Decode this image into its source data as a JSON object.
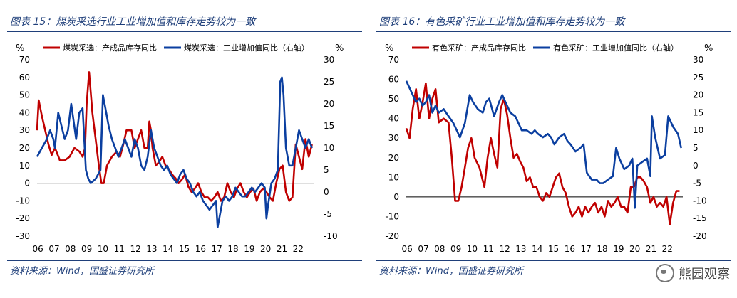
{
  "colors": {
    "red": "#c00000",
    "blue": "#0b3fa0",
    "title": "#1f3f7a"
  },
  "watermark": {
    "text": "熊园观察",
    "icon": "wechat-icon"
  },
  "charts": [
    {
      "title": "图表 15：煤炭采选行业工业增加值和库存走势较为一致",
      "source": "资料来源：Wind，国盛证券研究所",
      "chart_data": {
        "type": "line",
        "left_axis_unit": "%",
        "right_axis_unit": "%",
        "left_ylim": [
          -30,
          70
        ],
        "left_ticks": [
          -30,
          -20,
          -10,
          0,
          10,
          20,
          30,
          40,
          50,
          60,
          70
        ],
        "right_ylim": [
          -10,
          30
        ],
        "right_ticks": [
          -10,
          -5,
          0,
          5,
          10,
          15,
          20,
          25,
          30
        ],
        "xlim": [
          2006,
          2023
        ],
        "xticks": [
          "06",
          "07",
          "08",
          "09",
          "10",
          "11",
          "12",
          "13",
          "14",
          "15",
          "16",
          "17",
          "18",
          "19",
          "20",
          "21",
          "22"
        ],
        "series": [
          {
            "name": "煤炭采选：产成品库存同比",
            "axis": "left",
            "color": "#c00000",
            "x": [
              2006.0,
              2006.1,
              2006.3,
              2006.5,
              2006.7,
              2006.9,
              2007.1,
              2007.4,
              2007.7,
              2008.0,
              2008.3,
              2008.6,
              2008.8,
              2008.95,
              2009.05,
              2009.2,
              2009.4,
              2009.6,
              2009.8,
              2009.95,
              2010.1,
              2010.3,
              2010.6,
              2010.9,
              2011.1,
              2011.3,
              2011.5,
              2011.8,
              2012.0,
              2012.2,
              2012.4,
              2012.6,
              2012.8,
              2012.9,
              2013.0,
              2013.1,
              2013.3,
              2013.5,
              2013.7,
              2013.9,
              2014.1,
              2014.3,
              2014.5,
              2014.7,
              2014.9,
              2015.1,
              2015.3,
              2015.5,
              2015.7,
              2015.9,
              2016.1,
              2016.3,
              2016.5,
              2016.7,
              2016.9,
              2017.1,
              2017.3,
              2017.5,
              2017.7,
              2017.9,
              2018.1,
              2018.3,
              2018.5,
              2018.7,
              2018.9,
              2019.1,
              2019.3,
              2019.5,
              2019.7,
              2019.9,
              2020.1,
              2020.3,
              2020.5,
              2020.7,
              2020.9,
              2021.1,
              2021.3,
              2021.5,
              2021.7,
              2021.9,
              2022.1,
              2022.3,
              2022.5,
              2022.7,
              2022.9
            ],
            "y": [
              30,
              47,
              38,
              30,
              22,
              16,
              20,
              13,
              13,
              15,
              20,
              18,
              15,
              20,
              45,
              63,
              40,
              25,
              10,
              0,
              0,
              10,
              15,
              18,
              15,
              22,
              30,
              30,
              20,
              25,
              30,
              20,
              20,
              35,
              30,
              20,
              10,
              12,
              15,
              10,
              8,
              5,
              3,
              0,
              2,
              5,
              -2,
              -5,
              -3,
              0,
              -5,
              -8,
              -8,
              -10,
              -8,
              -5,
              -10,
              -8,
              0,
              -5,
              -8,
              -3,
              0,
              -5,
              -8,
              -5,
              -3,
              -10,
              -5,
              -3,
              -5,
              -8,
              -10,
              0,
              8,
              10,
              -5,
              -10,
              -8,
              22,
              15,
              8,
              25,
              15,
              22
            ]
          },
          {
            "name": "煤炭采选：工业增加值同比（右轴）",
            "axis": "right",
            "color": "#0b3fa0",
            "x": [
              2006.0,
              2006.3,
              2006.6,
              2006.8,
              2007.0,
              2007.1,
              2007.3,
              2007.5,
              2007.7,
              2007.9,
              2008.1,
              2008.4,
              2008.6,
              2008.8,
              2009.0,
              2009.15,
              2009.3,
              2009.6,
              2009.9,
              2010.05,
              2010.2,
              2010.4,
              2010.6,
              2010.8,
              2011.0,
              2011.2,
              2011.4,
              2011.6,
              2011.8,
              2012.0,
              2012.2,
              2012.4,
              2012.6,
              2012.8,
              2013.0,
              2013.2,
              2013.4,
              2013.6,
              2013.8,
              2014.0,
              2014.2,
              2014.4,
              2014.6,
              2014.8,
              2015.0,
              2015.2,
              2015.4,
              2015.6,
              2015.8,
              2016.0,
              2016.2,
              2016.4,
              2016.6,
              2016.8,
              2017.0,
              2017.1,
              2017.2,
              2017.4,
              2017.6,
              2017.8,
              2018.0,
              2018.2,
              2018.4,
              2018.6,
              2018.8,
              2019.0,
              2019.2,
              2019.4,
              2019.6,
              2019.8,
              2020.0,
              2020.1,
              2020.2,
              2020.4,
              2020.6,
              2020.8,
              2020.95,
              2021.05,
              2021.15,
              2021.3,
              2021.5,
              2021.7,
              2021.9,
              2022.1,
              2022.3,
              2022.5,
              2022.7,
              2022.9
            ],
            "y": [
              8,
              10,
              12,
              14,
              12,
              10,
              18,
              15,
              12,
              14,
              20,
              12,
              18,
              19,
              5,
              3,
              2,
              3,
              5,
              22,
              19,
              15,
              12,
              10,
              8,
              10,
              12,
              10,
              8,
              12,
              10,
              6,
              5,
              8,
              14,
              10,
              8,
              6,
              5,
              6,
              4,
              3,
              2,
              4,
              5,
              3,
              2,
              0,
              -1,
              0,
              -2,
              -3,
              -4,
              -3,
              -2,
              -8,
              -6,
              -2,
              -1,
              -2,
              -1,
              1,
              0,
              -1,
              -1,
              0,
              1,
              0,
              1,
              2,
              1,
              -6,
              -3,
              2,
              3,
              5,
              25,
              26,
              22,
              10,
              6,
              6,
              10,
              14,
              12,
              10,
              12,
              10
            ]
          }
        ]
      }
    },
    {
      "title": "图表 16：有色采矿行业工业增加值和库存走势较为一致",
      "source": "资料来源：Wind，国盛证券研究所",
      "chart_data": {
        "type": "line",
        "left_axis_unit": "%",
        "right_axis_unit": "%",
        "left_ylim": [
          -20,
          70
        ],
        "left_ticks": [
          -20,
          -10,
          0,
          10,
          20,
          30,
          40,
          50,
          60,
          70
        ],
        "right_ylim": [
          -20,
          30
        ],
        "right_ticks": [
          -20,
          -15,
          -10,
          -5,
          0,
          5,
          10,
          15,
          20,
          25,
          30
        ],
        "xlim": [
          2006,
          2023
        ],
        "xticks": [
          "06",
          "07",
          "08",
          "09",
          "10",
          "11",
          "12",
          "13",
          "14",
          "15",
          "16",
          "17",
          "18",
          "19",
          "20",
          "21",
          "22"
        ],
        "series": [
          {
            "name": "有色采矿：产成品库存同比",
            "axis": "left",
            "color": "#c00000",
            "x": [
              2006.0,
              2006.2,
              2006.4,
              2006.6,
              2006.8,
              2007.0,
              2007.2,
              2007.4,
              2007.6,
              2007.8,
              2008.0,
              2008.3,
              2008.6,
              2008.8,
              2009.0,
              2009.2,
              2009.4,
              2009.6,
              2009.8,
              2010.0,
              2010.2,
              2010.5,
              2010.8,
              2011.0,
              2011.2,
              2011.4,
              2011.6,
              2011.8,
              2012.0,
              2012.2,
              2012.4,
              2012.6,
              2012.8,
              2013.0,
              2013.2,
              2013.4,
              2013.6,
              2013.8,
              2014.0,
              2014.2,
              2014.4,
              2014.6,
              2014.8,
              2015.0,
              2015.2,
              2015.4,
              2015.6,
              2015.8,
              2016.0,
              2016.2,
              2016.4,
              2016.6,
              2016.8,
              2017.0,
              2017.2,
              2017.4,
              2017.6,
              2017.8,
              2018.0,
              2018.2,
              2018.4,
              2018.6,
              2018.8,
              2019.0,
              2019.2,
              2019.4,
              2019.6,
              2019.8,
              2020.0,
              2020.2,
              2020.4,
              2020.6,
              2020.8,
              2021.0,
              2021.2,
              2021.4,
              2021.6,
              2021.8,
              2022.0,
              2022.2,
              2022.4,
              2022.6,
              2022.8
            ],
            "y": [
              35,
              30,
              45,
              55,
              40,
              48,
              58,
              40,
              50,
              55,
              38,
              40,
              38,
              20,
              -2,
              -2,
              5,
              15,
              25,
              30,
              20,
              15,
              5,
              20,
              30,
              22,
              15,
              45,
              50,
              42,
              30,
              20,
              22,
              18,
              15,
              8,
              10,
              5,
              5,
              0,
              -2,
              2,
              0,
              5,
              10,
              12,
              5,
              2,
              -5,
              -10,
              -8,
              -5,
              -10,
              -5,
              -8,
              -5,
              -3,
              -8,
              -5,
              -10,
              -2,
              -5,
              -3,
              0,
              -5,
              -5,
              -8,
              5,
              5,
              10,
              10,
              8,
              5,
              -3,
              0,
              -5,
              -3,
              -5,
              0,
              -14,
              -3,
              3,
              3
            ]
          },
          {
            "name": "有色采矿：工业增加值同比（右轴）",
            "axis": "right",
            "color": "#0b3fa0",
            "x": [
              2006.0,
              2006.2,
              2006.4,
              2006.6,
              2006.8,
              2007.0,
              2007.2,
              2007.4,
              2007.6,
              2007.8,
              2008.0,
              2008.3,
              2008.6,
              2008.9,
              2009.1,
              2009.3,
              2009.6,
              2009.9,
              2010.1,
              2010.4,
              2010.7,
              2010.9,
              2011.1,
              2011.4,
              2011.7,
              2011.9,
              2012.1,
              2012.4,
              2012.7,
              2012.9,
              2013.1,
              2013.4,
              2013.7,
              2013.9,
              2014.1,
              2014.4,
              2014.7,
              2014.9,
              2015.1,
              2015.4,
              2015.7,
              2015.9,
              2016.1,
              2016.4,
              2016.7,
              2016.9,
              2017.1,
              2017.4,
              2017.7,
              2017.9,
              2018.1,
              2018.4,
              2018.7,
              2018.9,
              2019.1,
              2019.4,
              2019.7,
              2019.9,
              2020.05,
              2020.2,
              2020.5,
              2020.8,
              2021.0,
              2021.1,
              2021.3,
              2021.6,
              2021.9,
              2022.1,
              2022.4,
              2022.7,
              2022.9
            ],
            "y": [
              24,
              22,
              20,
              18,
              19,
              17,
              18,
              20,
              15,
              17,
              15,
              16,
              14,
              12,
              10,
              8,
              12,
              20,
              18,
              16,
              15,
              18,
              19,
              14,
              18,
              20,
              18,
              15,
              14,
              12,
              10,
              10,
              9,
              10,
              9,
              8,
              9,
              8,
              6,
              8,
              9,
              7,
              6,
              4,
              5,
              6,
              -2,
              -4,
              -4,
              -5,
              -5,
              -4,
              -3,
              5,
              2,
              -1,
              0,
              2,
              -12,
              0,
              1,
              2,
              -3,
              14,
              8,
              2,
              3,
              14,
              11,
              9,
              5
            ]
          }
        ]
      }
    }
  ]
}
